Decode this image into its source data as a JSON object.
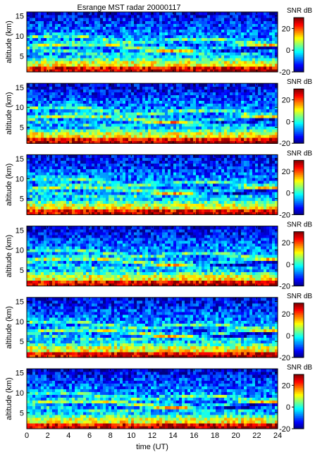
{
  "title": "Esrange MST radar 20000117",
  "xlabel": "time (UT)",
  "ylabel": "altitude (km)",
  "colorbar_label": "SNR dB",
  "colormap": "jet",
  "chart_data": [
    {
      "type": "heatmap",
      "panel": 1,
      "x_range": [
        0,
        24
      ],
      "y_range": [
        1,
        16
      ],
      "x_unit": "h UT",
      "y_unit": "km",
      "value_unit": "dB",
      "clim": [
        -20,
        30
      ],
      "title": "Esrange MST radar 20000117",
      "ylabel": "altitude (km)",
      "colorbar_label": "SNR dB",
      "y_ticks": [
        5,
        10,
        15
      ],
      "colorbar_ticks": [
        -20,
        0,
        20
      ]
    },
    {
      "type": "heatmap",
      "panel": 2,
      "x_range": [
        0,
        24
      ],
      "y_range": [
        1,
        16
      ],
      "x_unit": "h UT",
      "y_unit": "km",
      "value_unit": "dB",
      "clim": [
        -20,
        30
      ],
      "ylabel": "altitude (km)",
      "colorbar_label": "SNR dB",
      "y_ticks": [
        5,
        10,
        15
      ],
      "colorbar_ticks": [
        -20,
        0,
        20
      ]
    },
    {
      "type": "heatmap",
      "panel": 3,
      "x_range": [
        0,
        24
      ],
      "y_range": [
        1,
        16
      ],
      "x_unit": "h UT",
      "y_unit": "km",
      "value_unit": "dB",
      "clim": [
        -20,
        30
      ],
      "ylabel": "altitude (km)",
      "colorbar_label": "SNR dB",
      "y_ticks": [
        5,
        10,
        15
      ],
      "colorbar_ticks": [
        -20,
        0,
        20
      ]
    },
    {
      "type": "heatmap",
      "panel": 4,
      "x_range": [
        0,
        24
      ],
      "y_range": [
        1,
        16
      ],
      "x_unit": "h UT",
      "y_unit": "km",
      "value_unit": "dB",
      "clim": [
        -20,
        30
      ],
      "ylabel": "altitude (km)",
      "colorbar_label": "SNR dB",
      "y_ticks": [
        5,
        10,
        15
      ],
      "colorbar_ticks": [
        -20,
        0,
        20
      ]
    },
    {
      "type": "heatmap",
      "panel": 5,
      "x_range": [
        0,
        24
      ],
      "y_range": [
        1,
        16
      ],
      "x_unit": "h UT",
      "y_unit": "km",
      "value_unit": "dB",
      "clim": [
        -20,
        30
      ],
      "ylabel": "altitude (km)",
      "colorbar_label": "SNR dB",
      "y_ticks": [
        5,
        10,
        15
      ],
      "colorbar_ticks": [
        -20,
        0,
        20
      ]
    },
    {
      "type": "heatmap",
      "panel": 6,
      "x_range": [
        0,
        24
      ],
      "y_range": [
        1,
        16
      ],
      "x_unit": "h UT",
      "y_unit": "km",
      "value_unit": "dB",
      "clim": [
        -20,
        30
      ],
      "xlabel": "time (UT)",
      "ylabel": "altitude (km)",
      "colorbar_label": "SNR dB",
      "x_ticks": [
        0,
        2,
        4,
        6,
        8,
        10,
        12,
        14,
        16,
        18,
        20,
        22,
        24
      ],
      "y_ticks": [
        5,
        10,
        15
      ],
      "colorbar_ticks": [
        -20,
        0,
        20
      ]
    }
  ]
}
